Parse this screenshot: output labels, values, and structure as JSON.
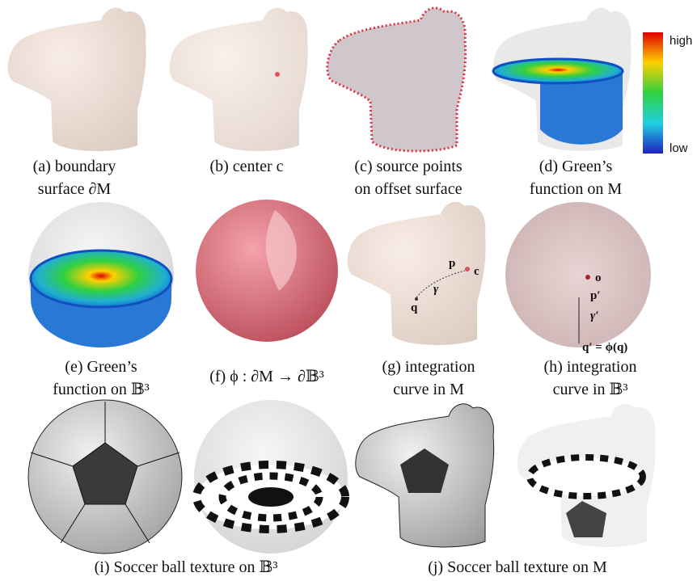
{
  "panels": [
    {
      "caption": [
        "(a) boundary",
        "surface ∂M"
      ]
    },
    {
      "caption": [
        "(b) center c"
      ]
    },
    {
      "caption": [
        "(c) source points",
        "on offset surface"
      ]
    },
    {
      "caption": [
        "(d) Green’s",
        "function on M"
      ],
      "colorbar": [
        "high",
        "low"
      ]
    },
    {
      "caption": [
        "(e) Green’s",
        "function on 𝔹³"
      ]
    },
    {
      "caption": [
        "(f) ϕ : ∂M → ∂𝔹³"
      ]
    },
    {
      "caption": [
        "(g) integration",
        "curve in M"
      ],
      "labels": [
        "c",
        "p",
        "γ",
        "q"
      ]
    },
    {
      "caption": [
        "(h) integration",
        "curve in 𝔹³"
      ],
      "labels": [
        "o",
        "p′",
        "γ′",
        "q′ = ϕ(q)"
      ]
    },
    {
      "caption": [
        "(i) Soccer ball texture on 𝔹³"
      ]
    },
    {
      "caption": [
        "(j) Soccer ball texture on M"
      ]
    }
  ]
}
